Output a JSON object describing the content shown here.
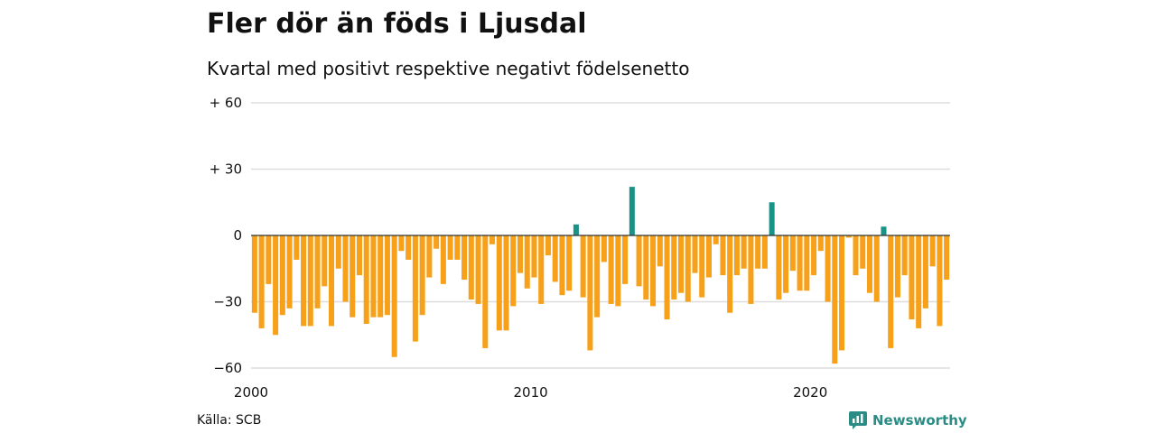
{
  "title": "Fler dör än föds i Ljusdal",
  "subtitle": "Kvartal med positivt respektive negativt födelsenetto",
  "source": "Källa: SCB",
  "brand": {
    "name": "Newsworthy",
    "icon": "newsworthy-logo-icon",
    "color": "#2a8c84"
  },
  "colors": {
    "positive": "#1a9386",
    "negative": "#f7a11a",
    "grid": "#dddddd",
    "zero_line": "#333333"
  },
  "chart_data": {
    "type": "bar",
    "title": "Fler dör än föds i Ljusdal",
    "subtitle": "Kvartal med positivt respektive negativt födelsenetto",
    "xlabel": "",
    "ylabel": "",
    "ylim": [
      -60,
      60
    ],
    "y_ticks": [
      {
        "value": 60,
        "label": "+ 60"
      },
      {
        "value": 30,
        "label": "+ 30"
      },
      {
        "value": 0,
        "label": "0"
      },
      {
        "value": -30,
        "label": "−30"
      },
      {
        "value": -60,
        "label": "−60"
      }
    ],
    "x_ticks": [
      {
        "index": 0,
        "label": "2000"
      },
      {
        "index": 40,
        "label": "2010"
      },
      {
        "index": 80,
        "label": "2020"
      }
    ],
    "grid": true,
    "values": [
      -35,
      -42,
      -22,
      -45,
      -36,
      -33,
      -11,
      -41,
      -41,
      -33,
      -23,
      -41,
      -15,
      -30,
      -37,
      -18,
      -40,
      -37,
      -37,
      -36,
      -55,
      -7,
      -11,
      -48,
      -36,
      -19,
      -6,
      -22,
      -11,
      -11,
      -20,
      -29,
      -31,
      -51,
      -4,
      -43,
      -43,
      -32,
      -17,
      -24,
      -19,
      -31,
      -9,
      -21,
      -27,
      -25,
      5,
      -28,
      -52,
      -37,
      -12,
      -31,
      -32,
      -22,
      22,
      -23,
      -29,
      -32,
      -14,
      -38,
      -29,
      -26,
      -30,
      -17,
      -28,
      -19,
      -4,
      -18,
      -35,
      -18,
      -15,
      -31,
      -15,
      -15,
      15,
      -29,
      -26,
      -16,
      -25,
      -25,
      -18,
      -7,
      -30,
      -58,
      -52,
      -1,
      -18,
      -15,
      -26,
      -30,
      4,
      -51,
      -28,
      -18,
      -38,
      -42,
      -33,
      -14,
      -41,
      -20
    ]
  }
}
